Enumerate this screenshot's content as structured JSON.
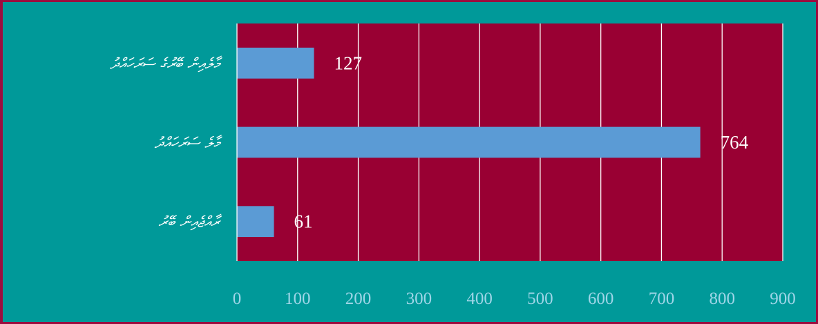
{
  "chart_data": {
    "type": "bar",
    "orientation": "horizontal",
    "categories": [
      "މާލެއިން ބޭރުގެ ސަރަހައްދު",
      "މާލެ ސަރަހައްދު",
      "ރާއްޖެއިން ބޭރު"
    ],
    "values": [
      127,
      764,
      61
    ],
    "xlim": [
      0,
      900
    ],
    "xticks": [
      0,
      100,
      200,
      300,
      400,
      500,
      600,
      700,
      800,
      900
    ],
    "grid": "vertical",
    "title": "",
    "xlabel": "",
    "ylabel": ""
  },
  "colors": {
    "background": "#009999",
    "plot_area": "#990033",
    "bar": "#5b9bd5",
    "gridline": "#ffffff",
    "tick_text": "#9fd6e8",
    "label_text": "#ffffff"
  }
}
